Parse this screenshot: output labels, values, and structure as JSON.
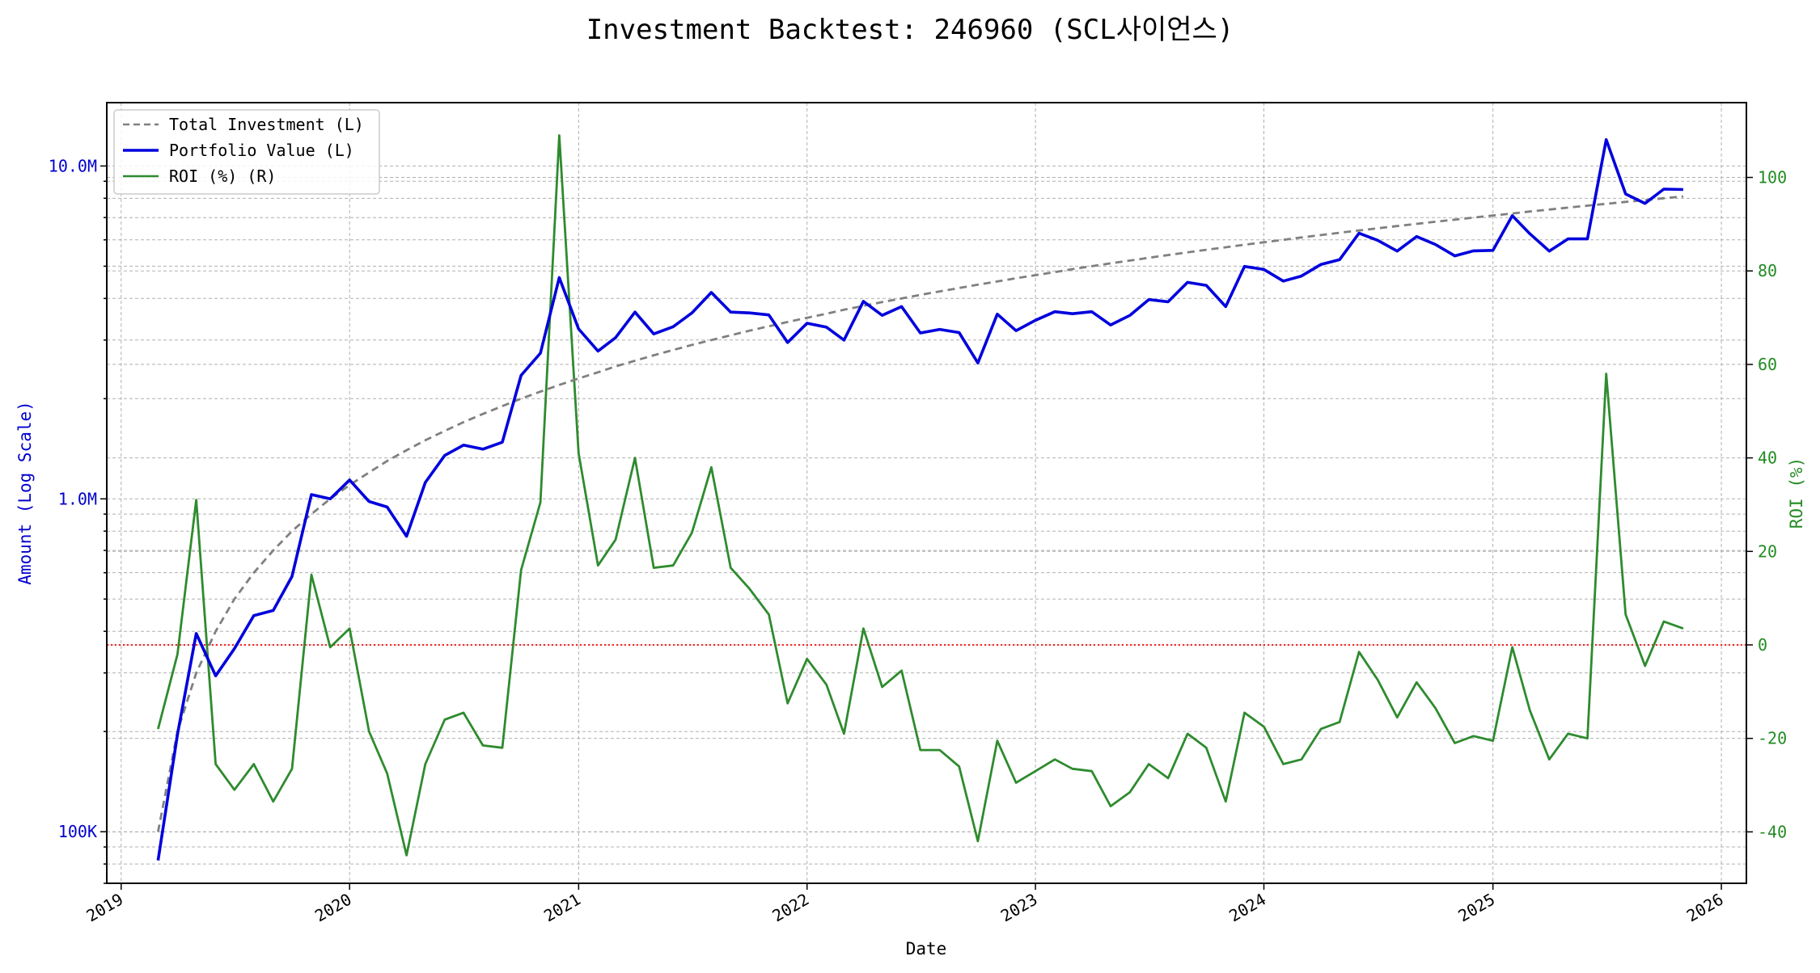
{
  "chart_data": {
    "type": "line",
    "title": "Investment Backtest: 246960 (SCL사이언스)",
    "xlabel": "Date",
    "ylabel_left": "Amount (Log Scale)",
    "ylabel_right": "ROI (%)",
    "left_scale": "log",
    "left_ylim": [
      70000,
      15500000
    ],
    "right_ylim": [
      -51,
      116
    ],
    "x_range": [
      "2018-12-09",
      "2026-02-10"
    ],
    "grid": true,
    "legend_placement": "top-left",
    "colors": {
      "total_investment": "#808080",
      "portfolio_value": "#0000dd",
      "roi": "#2e8b2e",
      "zero_line": "#ff0000",
      "left_axis_text": "#0000cc",
      "right_axis_text": "#228b22"
    },
    "x_ticks": [
      "2019",
      "2020",
      "2021",
      "2022",
      "2023",
      "2024",
      "2025",
      "2026"
    ],
    "left_ticks": [
      "100K",
      "1.0M",
      "10.0M"
    ],
    "right_ticks": [
      "-40",
      "-20",
      "0",
      "20",
      "40",
      "60",
      "80",
      "100"
    ],
    "dates": [
      "2019-03-01",
      "2019-04-01",
      "2019-05-01",
      "2019-06-01",
      "2019-07-01",
      "2019-08-01",
      "2019-09-01",
      "2019-10-01",
      "2019-11-01",
      "2019-12-01",
      "2020-01-01",
      "2020-02-01",
      "2020-03-01",
      "2020-04-01",
      "2020-05-01",
      "2020-06-01",
      "2020-07-01",
      "2020-08-01",
      "2020-09-01",
      "2020-10-01",
      "2020-11-01",
      "2020-12-01",
      "2021-01-01",
      "2021-02-01",
      "2021-03-01",
      "2021-04-01",
      "2021-05-01",
      "2021-06-01",
      "2021-07-01",
      "2021-08-01",
      "2021-09-01",
      "2021-10-01",
      "2021-11-01",
      "2021-12-01",
      "2022-01-01",
      "2022-02-01",
      "2022-03-01",
      "2022-04-01",
      "2022-05-01",
      "2022-06-01",
      "2022-07-01",
      "2022-08-01",
      "2022-09-01",
      "2022-10-01",
      "2022-11-01",
      "2022-12-01",
      "2023-01-01",
      "2023-02-01",
      "2023-03-01",
      "2023-04-01",
      "2023-05-01",
      "2023-06-01",
      "2023-07-01",
      "2023-08-01",
      "2023-09-01",
      "2023-10-01",
      "2023-11-01",
      "2023-12-01",
      "2024-01-01",
      "2024-02-01",
      "2024-03-01",
      "2024-04-01",
      "2024-05-01",
      "2024-06-01",
      "2024-07-01",
      "2024-08-01",
      "2024-09-01",
      "2024-10-01",
      "2024-11-01",
      "2024-12-01",
      "2025-01-01",
      "2025-02-01",
      "2025-03-01",
      "2025-04-01",
      "2025-05-01",
      "2025-06-01",
      "2025-07-01",
      "2025-08-01",
      "2025-09-01",
      "2025-10-01",
      "2025-11-01"
    ],
    "series": [
      {
        "name": "Total Investment (L)",
        "axis": "left",
        "style": "dashed",
        "values": [
          100000,
          200000,
          300000,
          400000,
          500000,
          600000,
          700000,
          800000,
          900000,
          1000000,
          1100000,
          1200000,
          1300000,
          1400000,
          1500000,
          1600000,
          1700000,
          1800000,
          1900000,
          2000000,
          2100000,
          2200000,
          2300000,
          2400000,
          2500000,
          2600000,
          2700000,
          2800000,
          2900000,
          3000000,
          3100000,
          3200000,
          3300000,
          3400000,
          3500000,
          3600000,
          3700000,
          3800000,
          3900000,
          4000000,
          4100000,
          4200000,
          4300000,
          4400000,
          4500000,
          4600000,
          4700000,
          4800000,
          4900000,
          5000000,
          5100000,
          5200000,
          5300000,
          5400000,
          5500000,
          5600000,
          5700000,
          5800000,
          5900000,
          6000000,
          6100000,
          6200000,
          6300000,
          6400000,
          6500000,
          6600000,
          6700000,
          6800000,
          6900000,
          7000000,
          7100000,
          7200000,
          7300000,
          7400000,
          7500000,
          7600000,
          7700000,
          7800000,
          7900000,
          8000000,
          8100000
        ]
      },
      {
        "name": "Portfolio Value (L)",
        "axis": "left",
        "style": "solid",
        "values": [
          82000,
          196000,
          394000,
          294000,
          355000,
          446000,
          462000,
          585000,
          1030000,
          1000000,
          1140000,
          982000,
          945000,
          772000,
          1120000,
          1350000,
          1450000,
          1410000,
          1480000,
          2350000,
          2740000,
          4620000,
          3240000,
          2780000,
          3050000,
          3640000,
          3130000,
          3290000,
          3620000,
          4170000,
          3640000,
          3620000,
          3570000,
          2950000,
          3370000,
          3280000,
          3000000,
          3920000,
          3560000,
          3780000,
          3150000,
          3230000,
          3160000,
          2560000,
          3590000,
          3200000,
          3440000,
          3650000,
          3600000,
          3650000,
          3330000,
          3560000,
          3970000,
          3910000,
          4470000,
          4380000,
          3780000,
          4990000,
          4890000,
          4510000,
          4670000,
          5060000,
          5230000,
          6280000,
          5980000,
          5550000,
          6140000,
          5810000,
          5370000,
          5560000,
          5580000,
          7090000,
          6260000,
          5550000,
          6040000,
          6040000,
          12000000,
          8240000,
          7720000,
          8520000,
          8500000
        ]
      },
      {
        "name": "ROI (%) (R)",
        "axis": "right",
        "style": "solid",
        "values": [
          -18,
          -2,
          31,
          -25.5,
          -31,
          -25.5,
          -33.5,
          -26.5,
          15,
          -0.5,
          3.5,
          -18.5,
          -27.5,
          -45,
          -25.5,
          -16,
          -14.5,
          -21.5,
          -22,
          16,
          30.5,
          109,
          41,
          17,
          22.5,
          40,
          16.5,
          17,
          24,
          38,
          16.5,
          12,
          6.5,
          -12.5,
          -3,
          -8.5,
          -19,
          3.5,
          -9,
          -5.5,
          -22.5,
          -22.5,
          -26,
          -42,
          -20.5,
          -29.5,
          -27,
          -24.5,
          -26.5,
          -27,
          -34.5,
          -31.5,
          -25.5,
          -28.5,
          -19,
          -22,
          -33.5,
          -14.5,
          -17.5,
          -25.5,
          -24.5,
          -18,
          -16.5,
          -1.5,
          -7.5,
          -15.5,
          -8,
          -13.5,
          -21,
          -19.5,
          -20.5,
          -0.5,
          -14,
          -24.5,
          -19,
          -20,
          58,
          6.5,
          -4.5,
          5,
          3.5
        ]
      }
    ]
  }
}
